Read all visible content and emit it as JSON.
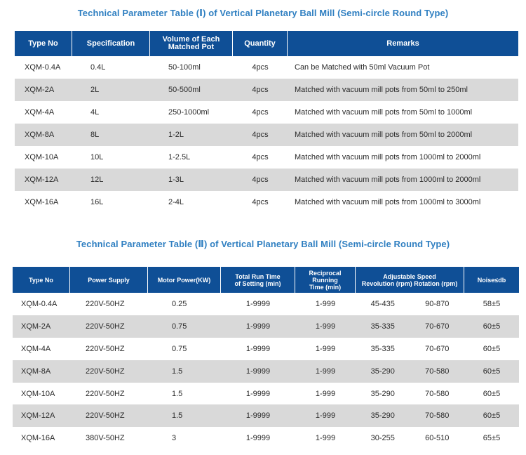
{
  "table1": {
    "title": "Technical Parameter Table (Ⅰ) of Vertical Planetary Ball Mill (Semi-circle Round Type)",
    "headers": {
      "type_no": "Type No",
      "specification": "Specification",
      "volume_line1": "Volume of Each",
      "volume_line2": "Matched Pot",
      "quantity": "Quantity",
      "remarks": "Remarks"
    },
    "rows": [
      {
        "type": "XQM-0.4A",
        "spec": "0.4L",
        "volume": "50-100ml",
        "qty": "4pcs",
        "remarks": "Can be Matched with 50ml Vacuum Pot"
      },
      {
        "type": "XQM-2A",
        "spec": "2L",
        "volume": "50-500ml",
        "qty": "4pcs",
        "remarks": "Matched with vacuum mill pots from 50ml to 250ml"
      },
      {
        "type": "XQM-4A",
        "spec": "4L",
        "volume": "250-1000ml",
        "qty": "4pcs",
        "remarks": "Matched with vacuum mill pots from 50ml to 1000ml"
      },
      {
        "type": "XQM-8A",
        "spec": "8L",
        "volume": "1-2L",
        "qty": "4pcs",
        "remarks": "Matched with vacuum mill pots from 50ml to 2000ml"
      },
      {
        "type": "XQM-10A",
        "spec": "10L",
        "volume": "1-2.5L",
        "qty": "4pcs",
        "remarks": "Matched with vacuum mill pots from 1000ml to 2000ml"
      },
      {
        "type": "XQM-12A",
        "spec": "12L",
        "volume": "1-3L",
        "qty": "4pcs",
        "remarks": "Matched with vacuum mill pots from 1000ml to 2000ml"
      },
      {
        "type": "XQM-16A",
        "spec": "16L",
        "volume": "2-4L",
        "qty": "4pcs",
        "remarks": "Matched with vacuum mill pots from 1000ml to 3000ml"
      }
    ]
  },
  "table2": {
    "title": "Technical Parameter Table (Ⅱ) of Vertical Planetary Ball Mill (Semi-circle Round Type)",
    "headers": {
      "type_no": "Type No",
      "power_supply": "Power Supply",
      "motor_power": "Motor Power(KW)",
      "run_time_line1": "Total Run Time",
      "run_time_line2": "of Setting (min)",
      "reciprocal_line1": "Reciprocal Running",
      "reciprocal_line2": "Time (min)",
      "speed_line1": "Adjustable Speed",
      "speed_line2": "Revolution (rpm)  Rotation (rpm)",
      "noise": "Noise≤db"
    },
    "rows": [
      {
        "type": "XQM-0.4A",
        "power": "220V-50HZ",
        "motor": "0.25",
        "run": "1-9999",
        "recip": "1-999",
        "rev": "45-435",
        "rot": "90-870",
        "noise": "58±5"
      },
      {
        "type": "XQM-2A",
        "power": "220V-50HZ",
        "motor": "0.75",
        "run": "1-9999",
        "recip": "1-999",
        "rev": "35-335",
        "rot": "70-670",
        "noise": "60±5"
      },
      {
        "type": "XQM-4A",
        "power": "220V-50HZ",
        "motor": "0.75",
        "run": "1-9999",
        "recip": "1-999",
        "rev": "35-335",
        "rot": "70-670",
        "noise": "60±5"
      },
      {
        "type": "XQM-8A",
        "power": "220V-50HZ",
        "motor": "1.5",
        "run": "1-9999",
        "recip": "1-999",
        "rev": "35-290",
        "rot": "70-580",
        "noise": "60±5"
      },
      {
        "type": "XQM-10A",
        "power": "220V-50HZ",
        "motor": "1.5",
        "run": "1-9999",
        "recip": "1-999",
        "rev": "35-290",
        "rot": "70-580",
        "noise": "60±5"
      },
      {
        "type": "XQM-12A",
        "power": "220V-50HZ",
        "motor": "1.5",
        "run": "1-9999",
        "recip": "1-999",
        "rev": "35-290",
        "rot": "70-580",
        "noise": "60±5"
      },
      {
        "type": "XQM-16A",
        "power": "380V-50HZ",
        "motor": "3",
        "run": "1-9999",
        "recip": "1-999",
        "rev": "30-255",
        "rot": "60-510",
        "noise": "65±5"
      }
    ]
  }
}
